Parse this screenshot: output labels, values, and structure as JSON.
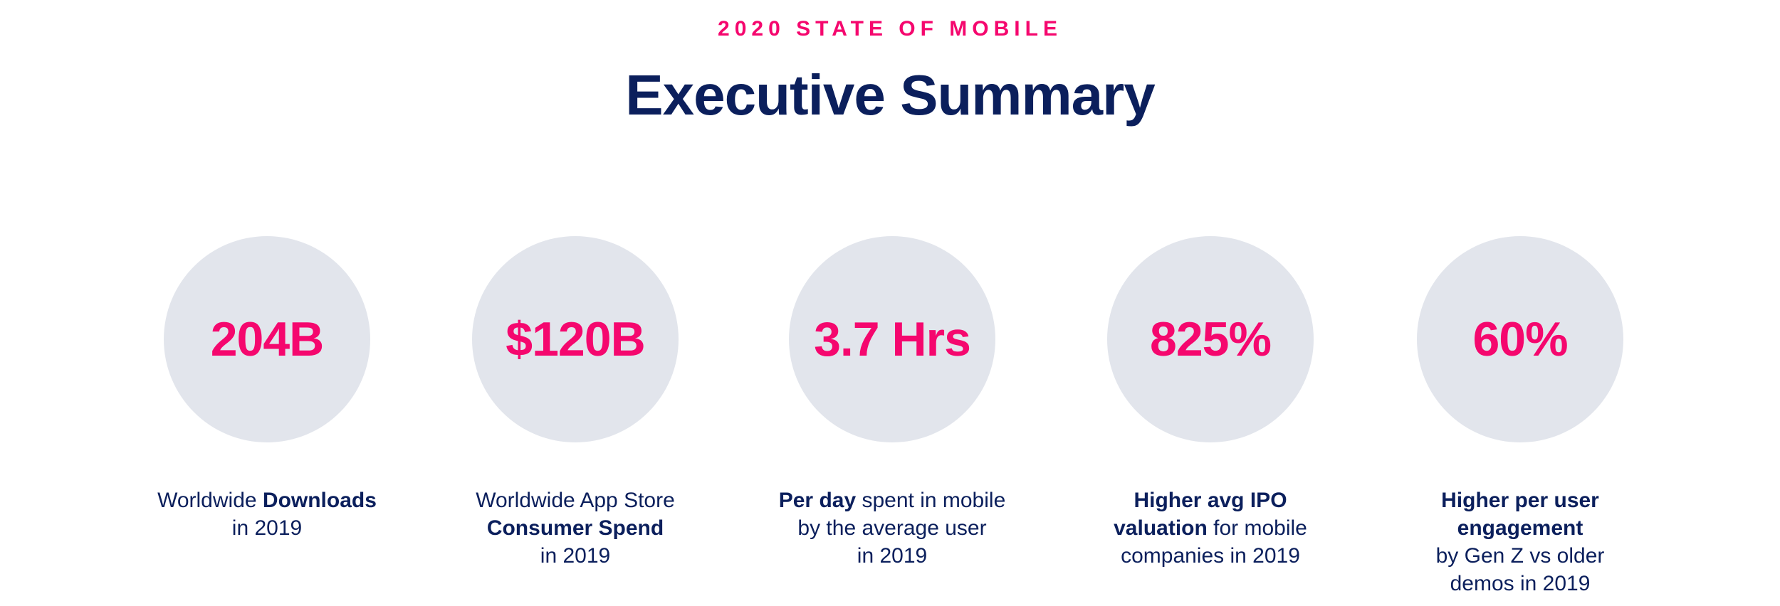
{
  "header": {
    "eyebrow": "2020 STATE OF MOBILE",
    "title": "Executive Summary"
  },
  "colors": {
    "accent": "#f5076e",
    "navy": "#0b1f5c",
    "circle": "#e2e5ec"
  },
  "stats": [
    {
      "value": "204B",
      "lines": [
        {
          "pre": "Worldwide ",
          "bold": "Downloads",
          "post": ""
        },
        {
          "pre": "in 2019",
          "bold": "",
          "post": ""
        }
      ]
    },
    {
      "value": "$120B",
      "lines": [
        {
          "pre": "Worldwide App Store",
          "bold": "",
          "post": ""
        },
        {
          "pre": "",
          "bold": "Consumer Spend",
          "post": ""
        },
        {
          "pre": "in 2019",
          "bold": "",
          "post": ""
        }
      ]
    },
    {
      "value": "3.7 Hrs",
      "lines": [
        {
          "pre": "",
          "bold": "Per day",
          "post": " spent in mobile"
        },
        {
          "pre": "by the average user",
          "bold": "",
          "post": ""
        },
        {
          "pre": "in 2019",
          "bold": "",
          "post": ""
        }
      ]
    },
    {
      "value": "825%",
      "lines": [
        {
          "pre": "",
          "bold": "Higher avg IPO",
          "post": ""
        },
        {
          "pre": "",
          "bold": "valuation",
          "post": " for mobile"
        },
        {
          "pre": "companies in 2019",
          "bold": "",
          "post": ""
        }
      ]
    },
    {
      "value": "60%",
      "lines": [
        {
          "pre": "",
          "bold": "Higher per user",
          "post": ""
        },
        {
          "pre": "",
          "bold": "engagement",
          "post": ""
        },
        {
          "pre": "by Gen Z vs older",
          "bold": "",
          "post": ""
        },
        {
          "pre": "demos in 2019",
          "bold": "",
          "post": ""
        }
      ]
    }
  ]
}
